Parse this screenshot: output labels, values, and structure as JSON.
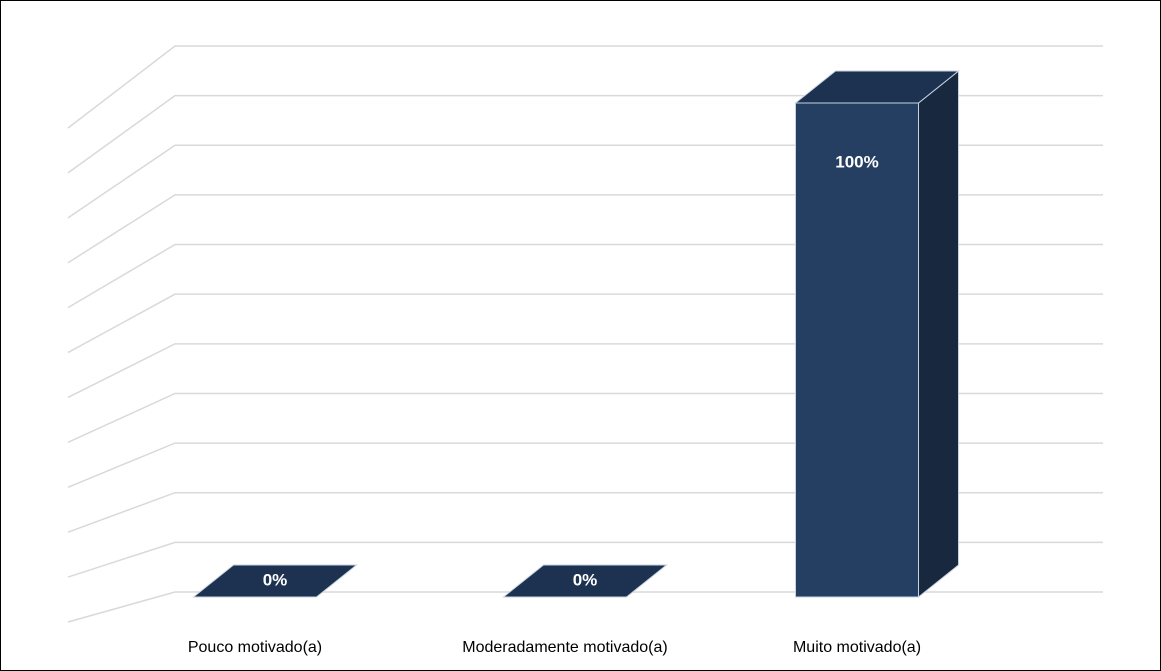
{
  "chart_data": {
    "type": "bar3d",
    "categories": [
      "Pouco motivado(a)",
      "Moderadamente motivado(a)",
      "Muito motivado(a)"
    ],
    "values": [
      0,
      0,
      100
    ],
    "value_labels": [
      "0%",
      "0%",
      "100%"
    ],
    "color": "#253f62",
    "ylim": [
      0,
      110
    ],
    "yticks": [
      0,
      10,
      20,
      30,
      40,
      50,
      60,
      70,
      80,
      90,
      100,
      110
    ],
    "grid": true
  }
}
